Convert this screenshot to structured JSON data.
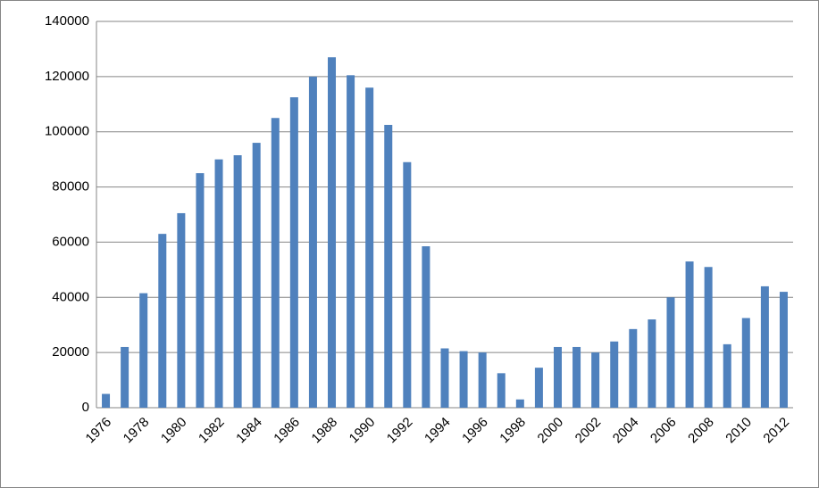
{
  "chart_data": {
    "type": "bar",
    "categories": [
      "1976",
      null,
      "1978",
      null,
      "1980",
      null,
      "1982",
      null,
      "1984",
      null,
      "1986",
      null,
      "1988",
      null,
      "1990",
      null,
      "1992",
      null,
      "1994",
      null,
      "1996",
      null,
      "1998",
      null,
      "2000",
      null,
      "2002",
      null,
      "2004",
      null,
      "2006",
      null,
      "2008",
      null,
      "2010",
      null,
      "2012"
    ],
    "values": [
      5000,
      22000,
      41500,
      63000,
      70500,
      85000,
      90000,
      91500,
      96000,
      105000,
      112500,
      120000,
      127000,
      120500,
      116000,
      102500,
      89000,
      58500,
      21500,
      20500,
      20000,
      12500,
      3000,
      14500,
      22000,
      22000,
      20000,
      24000,
      28500,
      32000,
      40000,
      53000,
      51000,
      23000,
      32500,
      44000,
      42000
    ],
    "color": "#4f81bd",
    "ylim": [
      0,
      140000
    ],
    "yticks": [
      0,
      20000,
      40000,
      60000,
      80000,
      100000,
      120000,
      140000
    ],
    "grid": true
  }
}
